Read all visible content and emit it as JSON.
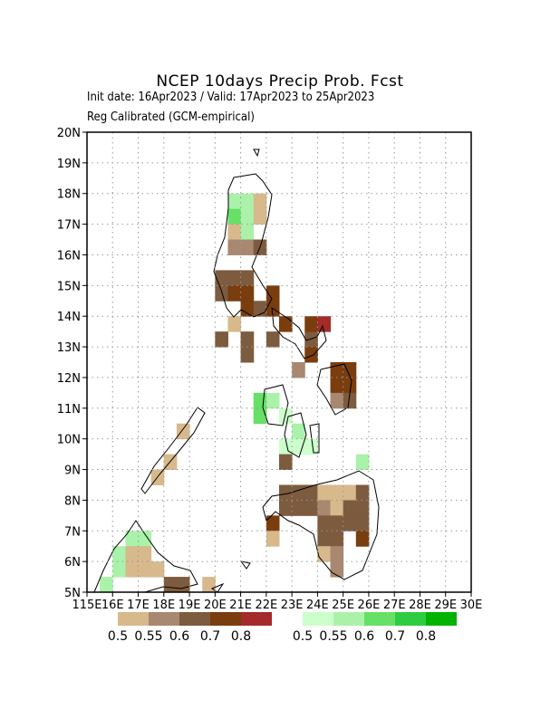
{
  "header": {
    "title": "NCEP 10days Precip Prob. Fcst",
    "dates": "Init date: 16Apr2023 / Valid: 17Apr2023 to 25Apr2023",
    "method": "Reg Calibrated (GCM-empirical)"
  },
  "map": {
    "lon_ticks": [
      {
        "value": 115,
        "label": "115E"
      },
      {
        "value": 116,
        "label": "16E"
      },
      {
        "value": 117,
        "label": "17E"
      },
      {
        "value": 118,
        "label": "18E"
      },
      {
        "value": 119,
        "label": "19E"
      },
      {
        "value": 120,
        "label": "20E"
      },
      {
        "value": 121,
        "label": "21E"
      },
      {
        "value": 122,
        "label": "22E"
      },
      {
        "value": 123,
        "label": "23E"
      },
      {
        "value": 124,
        "label": "24E"
      },
      {
        "value": 125,
        "label": "25E"
      },
      {
        "value": 126,
        "label": "26E"
      },
      {
        "value": 127,
        "label": "27E"
      },
      {
        "value": 128,
        "label": "28E"
      },
      {
        "value": 129,
        "label": "29E"
      },
      {
        "value": 130,
        "label": "30E"
      }
    ],
    "lat_ticks": [
      {
        "value": 5,
        "label": "5N"
      },
      {
        "value": 6,
        "label": "6N"
      },
      {
        "value": 7,
        "label": "7N"
      },
      {
        "value": 8,
        "label": "8N"
      },
      {
        "value": 9,
        "label": "9N"
      },
      {
        "value": 10,
        "label": "10N"
      },
      {
        "value": 11,
        "label": "11N"
      },
      {
        "value": 12,
        "label": "12N"
      },
      {
        "value": 13,
        "label": "13N"
      },
      {
        "value": 14,
        "label": "14N"
      },
      {
        "value": 15,
        "label": "15N"
      },
      {
        "value": 16,
        "label": "16N"
      },
      {
        "value": 17,
        "label": "17N"
      },
      {
        "value": 18,
        "label": "18N"
      },
      {
        "value": 19,
        "label": "19N"
      },
      {
        "value": 20,
        "label": "20N"
      }
    ],
    "cells": [
      {
        "lon": 120.5,
        "lat": 17.5,
        "cat": "wet",
        "prob": 0.55
      },
      {
        "lon": 121,
        "lat": 17.5,
        "cat": "wet",
        "prob": 0.55
      },
      {
        "lon": 121.5,
        "lat": 17.5,
        "cat": "dry",
        "prob": 0.5
      },
      {
        "lon": 120.5,
        "lat": 17,
        "cat": "wet",
        "prob": 0.6
      },
      {
        "lon": 121,
        "lat": 17,
        "cat": "wet",
        "prob": 0.55
      },
      {
        "lon": 121.5,
        "lat": 17,
        "cat": "dry",
        "prob": 0.5
      },
      {
        "lon": 120.5,
        "lat": 16.5,
        "cat": "dry",
        "prob": 0.5
      },
      {
        "lon": 121,
        "lat": 16.5,
        "cat": "wet",
        "prob": 0.55
      },
      {
        "lon": 120.5,
        "lat": 16,
        "cat": "dry",
        "prob": 0.55
      },
      {
        "lon": 121,
        "lat": 16,
        "cat": "dry",
        "prob": 0.55
      },
      {
        "lon": 121.5,
        "lat": 16,
        "cat": "dry",
        "prob": 0.6
      },
      {
        "lon": 120,
        "lat": 15,
        "cat": "dry",
        "prob": 0.6
      },
      {
        "lon": 120.5,
        "lat": 15,
        "cat": "dry",
        "prob": 0.6
      },
      {
        "lon": 121,
        "lat": 15,
        "cat": "dry",
        "prob": 0.6
      },
      {
        "lon": 120,
        "lat": 14.5,
        "cat": "dry",
        "prob": 0.6
      },
      {
        "lon": 120.5,
        "lat": 14.5,
        "cat": "dry",
        "prob": 0.7
      },
      {
        "lon": 121,
        "lat": 14.5,
        "cat": "dry",
        "prob": 0.7
      },
      {
        "lon": 121,
        "lat": 14,
        "cat": "dry",
        "prob": 0.7
      },
      {
        "lon": 121.5,
        "lat": 14,
        "cat": "dry",
        "prob": 0.6
      },
      {
        "lon": 122,
        "lat": 14,
        "cat": "dry",
        "prob": 0.7
      },
      {
        "lon": 122,
        "lat": 14.5,
        "cat": "dry",
        "prob": 0.7
      },
      {
        "lon": 122.5,
        "lat": 13.5,
        "cat": "dry",
        "prob": 0.7
      },
      {
        "lon": 120.5,
        "lat": 13.5,
        "cat": "dry",
        "prob": 0.5
      },
      {
        "lon": 120,
        "lat": 13,
        "cat": "dry",
        "prob": 0.6
      },
      {
        "lon": 121,
        "lat": 13,
        "cat": "dry",
        "prob": 0.6
      },
      {
        "lon": 121,
        "lat": 12.5,
        "cat": "dry",
        "prob": 0.6
      },
      {
        "lon": 122,
        "lat": 13,
        "cat": "dry",
        "prob": 0.6
      },
      {
        "lon": 123.5,
        "lat": 13,
        "cat": "dry",
        "prob": 0.6
      },
      {
        "lon": 123.5,
        "lat": 13.5,
        "cat": "dry",
        "prob": 0.7
      },
      {
        "lon": 124,
        "lat": 13.5,
        "cat": "dry",
        "prob": 0.8
      },
      {
        "lon": 123.5,
        "lat": 12.5,
        "cat": "dry",
        "prob": 0.7
      },
      {
        "lon": 123,
        "lat": 12,
        "cat": "dry",
        "prob": 0.55
      },
      {
        "lon": 124.5,
        "lat": 12,
        "cat": "dry",
        "prob": 0.7
      },
      {
        "lon": 125,
        "lat": 12,
        "cat": "dry",
        "prob": 0.7
      },
      {
        "lon": 124.5,
        "lat": 11.5,
        "cat": "dry",
        "prob": 0.7
      },
      {
        "lon": 125,
        "lat": 11.5,
        "cat": "dry",
        "prob": 0.7
      },
      {
        "lon": 124.5,
        "lat": 11,
        "cat": "dry",
        "prob": 0.55
      },
      {
        "lon": 125,
        "lat": 11,
        "cat": "dry",
        "prob": 0.6
      },
      {
        "lon": 121.5,
        "lat": 11,
        "cat": "wet",
        "prob": 0.6
      },
      {
        "lon": 122,
        "lat": 11,
        "cat": "wet",
        "prob": 0.55
      },
      {
        "lon": 121.5,
        "lat": 10.5,
        "cat": "wet",
        "prob": 0.6
      },
      {
        "lon": 122.5,
        "lat": 10.5,
        "cat": "wet",
        "prob": 0.5
      },
      {
        "lon": 123,
        "lat": 10,
        "cat": "wet",
        "prob": 0.55
      },
      {
        "lon": 122.5,
        "lat": 9.5,
        "cat": "wet",
        "prob": 0.5
      },
      {
        "lon": 123,
        "lat": 9.5,
        "cat": "wet",
        "prob": 0.5
      },
      {
        "lon": 123.5,
        "lat": 9.5,
        "cat": "wet",
        "prob": 0.5
      },
      {
        "lon": 122.5,
        "lat": 9,
        "cat": "dry",
        "prob": 0.6
      },
      {
        "lon": 118.5,
        "lat": 10,
        "cat": "dry",
        "prob": 0.5
      },
      {
        "lon": 118,
        "lat": 9,
        "cat": "dry",
        "prob": 0.5
      },
      {
        "lon": 117.5,
        "lat": 8.5,
        "cat": "dry",
        "prob": 0.5
      },
      {
        "lon": 125.5,
        "lat": 9,
        "cat": "wet",
        "prob": 0.55
      },
      {
        "lon": 122.5,
        "lat": 8,
        "cat": "dry",
        "prob": 0.6
      },
      {
        "lon": 123,
        "lat": 8,
        "cat": "dry",
        "prob": 0.6
      },
      {
        "lon": 123.5,
        "lat": 8,
        "cat": "dry",
        "prob": 0.6
      },
      {
        "lon": 124,
        "lat": 8,
        "cat": "dry",
        "prob": 0.5
      },
      {
        "lon": 124.5,
        "lat": 8,
        "cat": "dry",
        "prob": 0.5
      },
      {
        "lon": 125,
        "lat": 8,
        "cat": "dry",
        "prob": 0.5
      },
      {
        "lon": 125.5,
        "lat": 8,
        "cat": "dry",
        "prob": 0.6
      },
      {
        "lon": 122.5,
        "lat": 7.5,
        "cat": "dry",
        "prob": 0.6
      },
      {
        "lon": 123,
        "lat": 7.5,
        "cat": "dry",
        "prob": 0.6
      },
      {
        "lon": 123.5,
        "lat": 7.5,
        "cat": "dry",
        "prob": 0.6
      },
      {
        "lon": 124,
        "lat": 7.5,
        "cat": "dry",
        "prob": 0.55
      },
      {
        "lon": 124.5,
        "lat": 7.5,
        "cat": "dry",
        "prob": 0.5
      },
      {
        "lon": 125,
        "lat": 7.5,
        "cat": "dry",
        "prob": 0.6
      },
      {
        "lon": 125.5,
        "lat": 7.5,
        "cat": "dry",
        "prob": 0.6
      },
      {
        "lon": 122,
        "lat": 7,
        "cat": "dry",
        "prob": 0.7
      },
      {
        "lon": 124,
        "lat": 7,
        "cat": "dry",
        "prob": 0.6
      },
      {
        "lon": 124.5,
        "lat": 7,
        "cat": "dry",
        "prob": 0.6
      },
      {
        "lon": 125,
        "lat": 7,
        "cat": "dry",
        "prob": 0.6
      },
      {
        "lon": 125.5,
        "lat": 7,
        "cat": "dry",
        "prob": 0.6
      },
      {
        "lon": 122,
        "lat": 6.5,
        "cat": "dry",
        "prob": 0.5
      },
      {
        "lon": 124,
        "lat": 6.5,
        "cat": "dry",
        "prob": 0.6
      },
      {
        "lon": 124.5,
        "lat": 6.5,
        "cat": "dry",
        "prob": 0.6
      },
      {
        "lon": 125.5,
        "lat": 6.5,
        "cat": "dry",
        "prob": 0.7
      },
      {
        "lon": 124,
        "lat": 6,
        "cat": "dry",
        "prob": 0.5
      },
      {
        "lon": 124.5,
        "lat": 6,
        "cat": "dry",
        "prob": 0.55
      },
      {
        "lon": 124.5,
        "lat": 5.5,
        "cat": "dry",
        "prob": 0.55
      },
      {
        "lon": 116.5,
        "lat": 6.5,
        "cat": "wet",
        "prob": 0.55
      },
      {
        "lon": 117,
        "lat": 6.5,
        "cat": "wet",
        "prob": 0.55
      },
      {
        "lon": 116,
        "lat": 6,
        "cat": "wet",
        "prob": 0.55
      },
      {
        "lon": 116.5,
        "lat": 6,
        "cat": "dry",
        "prob": 0.5
      },
      {
        "lon": 117,
        "lat": 6,
        "cat": "dry",
        "prob": 0.5
      },
      {
        "lon": 116,
        "lat": 5.5,
        "cat": "wet",
        "prob": 0.55
      },
      {
        "lon": 116.5,
        "lat": 5.5,
        "cat": "dry",
        "prob": 0.5
      },
      {
        "lon": 117,
        "lat": 5.5,
        "cat": "dry",
        "prob": 0.5
      },
      {
        "lon": 117.5,
        "lat": 5.5,
        "cat": "dry",
        "prob": 0.5
      },
      {
        "lon": 115.5,
        "lat": 5,
        "cat": "wet",
        "prob": 0.55
      },
      {
        "lon": 118,
        "lat": 5,
        "cat": "dry",
        "prob": 0.6
      },
      {
        "lon": 118.5,
        "lat": 5,
        "cat": "dry",
        "prob": 0.6
      },
      {
        "lon": 119.5,
        "lat": 5,
        "cat": "dry",
        "prob": 0.5
      }
    ]
  },
  "legend": {
    "dry": {
      "values": [
        0.5,
        0.55,
        0.6,
        0.7,
        0.8
      ],
      "colors": [
        "#d8b98b",
        "#a88870",
        "#7d5b3e",
        "#7a3d0e",
        "#a52a2a"
      ]
    },
    "wet": {
      "values": [
        0.5,
        0.55,
        0.6,
        0.7,
        0.8
      ],
      "colors": [
        "#ccffcc",
        "#aaf2aa",
        "#66e066",
        "#2ecc40",
        "#00b300"
      ]
    }
  }
}
